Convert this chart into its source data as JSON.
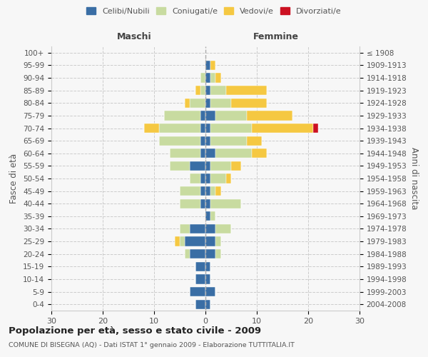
{
  "age_groups": [
    "100+",
    "95-99",
    "90-94",
    "85-89",
    "80-84",
    "75-79",
    "70-74",
    "65-69",
    "60-64",
    "55-59",
    "50-54",
    "45-49",
    "40-44",
    "35-39",
    "30-34",
    "25-29",
    "20-24",
    "15-19",
    "10-14",
    "5-9",
    "0-4"
  ],
  "birth_years": [
    "≤ 1908",
    "1909-1913",
    "1914-1918",
    "1919-1923",
    "1924-1928",
    "1929-1933",
    "1934-1938",
    "1939-1943",
    "1944-1948",
    "1949-1953",
    "1954-1958",
    "1959-1963",
    "1964-1968",
    "1969-1973",
    "1974-1978",
    "1979-1983",
    "1984-1988",
    "1989-1993",
    "1994-1998",
    "1999-2003",
    "2004-2008"
  ],
  "male": {
    "celibe": [
      0,
      0,
      0,
      0,
      0,
      1,
      1,
      1,
      1,
      3,
      1,
      1,
      1,
      0,
      3,
      4,
      3,
      2,
      2,
      3,
      2
    ],
    "coniugato": [
      0,
      0,
      1,
      1,
      3,
      7,
      8,
      8,
      6,
      4,
      2,
      4,
      4,
      0,
      2,
      1,
      1,
      0,
      0,
      0,
      0
    ],
    "vedovo": [
      0,
      0,
      0,
      1,
      1,
      0,
      3,
      0,
      0,
      0,
      0,
      0,
      0,
      0,
      0,
      1,
      0,
      0,
      0,
      0,
      0
    ],
    "divorziato": [
      0,
      0,
      0,
      0,
      0,
      0,
      0,
      0,
      0,
      0,
      0,
      0,
      0,
      0,
      0,
      0,
      0,
      0,
      0,
      0,
      0
    ]
  },
  "female": {
    "nubile": [
      0,
      1,
      1,
      1,
      1,
      2,
      1,
      1,
      2,
      1,
      1,
      1,
      1,
      1,
      2,
      2,
      2,
      1,
      1,
      2,
      1
    ],
    "coniugata": [
      0,
      0,
      1,
      3,
      4,
      6,
      8,
      7,
      7,
      4,
      3,
      1,
      6,
      1,
      3,
      1,
      1,
      0,
      0,
      0,
      0
    ],
    "vedova": [
      0,
      1,
      1,
      8,
      7,
      9,
      12,
      3,
      3,
      2,
      1,
      1,
      0,
      0,
      0,
      0,
      0,
      0,
      0,
      0,
      0
    ],
    "divorziata": [
      0,
      0,
      0,
      0,
      0,
      0,
      1,
      0,
      0,
      0,
      0,
      0,
      0,
      0,
      0,
      0,
      0,
      0,
      0,
      0,
      0
    ]
  },
  "colors": {
    "celibe_nubile": "#3a6ea5",
    "coniugato": "#c8dba0",
    "vedovo": "#f5c842",
    "divorziato": "#cc1122"
  },
  "xlim": [
    -30,
    30
  ],
  "xticks": [
    -30,
    -20,
    -10,
    0,
    10,
    20,
    30
  ],
  "xticklabels": [
    "30",
    "20",
    "10",
    "0",
    "10",
    "20",
    "30"
  ],
  "title": "Popolazione per età, sesso e stato civile - 2009",
  "subtitle": "COMUNE DI BISEGNA (AQ) - Dati ISTAT 1° gennaio 2009 - Elaborazione TUTTITALIA.IT",
  "ylabel_left": "Fasce di età",
  "ylabel_right": "Anni di nascita",
  "label_maschi": "Maschi",
  "label_femmine": "Femmine",
  "legend_labels": [
    "Celibi/Nubili",
    "Coniugati/e",
    "Vedovi/e",
    "Divorziati/e"
  ],
  "bg_color": "#f7f7f7",
  "plot_bg": "#f7f7f7"
}
